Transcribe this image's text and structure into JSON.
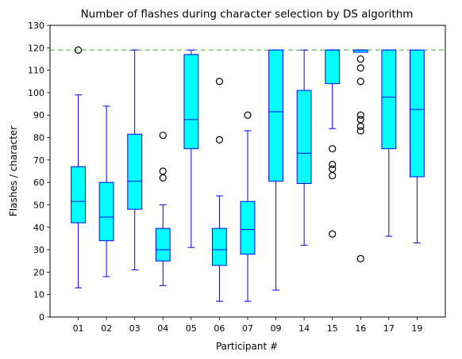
{
  "chart_data": {
    "type": "box",
    "title": "Number of flashes during character selection by DS algorithm",
    "xlabel": "Participant #",
    "ylabel": "Flashes / character",
    "ylim": [
      0,
      130
    ],
    "yticks": [
      0,
      10,
      20,
      30,
      40,
      50,
      60,
      70,
      80,
      90,
      100,
      110,
      120,
      130
    ],
    "reference_line": {
      "y": 119,
      "style": "dashed",
      "color": "#7fbf7f"
    },
    "colors": {
      "box_fill": "#00ffff",
      "box_edge": "#0000ff",
      "whisker": "#0000ff",
      "median": "#0000ff",
      "flier_edge": "#000000"
    },
    "categories": [
      "01",
      "02",
      "03",
      "04",
      "05",
      "06",
      "07",
      "09",
      "14",
      "15",
      "16",
      "17",
      "19"
    ],
    "boxes": [
      {
        "label": "01",
        "whisker_low": 13,
        "q1": 42,
        "median": 51.5,
        "q3": 67,
        "whisker_high": 99,
        "fliers": [
          119
        ]
      },
      {
        "label": "02",
        "whisker_low": 18,
        "q1": 34,
        "median": 44.5,
        "q3": 60,
        "whisker_high": 94,
        "fliers": []
      },
      {
        "label": "03",
        "whisker_low": 21,
        "q1": 48,
        "median": 60.5,
        "q3": 81.5,
        "whisker_high": 119,
        "fliers": []
      },
      {
        "label": "04",
        "whisker_low": 14,
        "q1": 25,
        "median": 30,
        "q3": 39.5,
        "whisker_high": 50,
        "fliers": [
          62,
          65,
          81
        ]
      },
      {
        "label": "05",
        "whisker_low": 31,
        "q1": 75,
        "median": 88,
        "q3": 117,
        "whisker_high": 119,
        "fliers": []
      },
      {
        "label": "06",
        "whisker_low": 7,
        "q1": 23,
        "median": 30,
        "q3": 39.5,
        "whisker_high": 54,
        "fliers": [
          79,
          105
        ]
      },
      {
        "label": "07",
        "whisker_low": 7,
        "q1": 28,
        "median": 39,
        "q3": 51.5,
        "whisker_high": 83,
        "fliers": [
          90
        ]
      },
      {
        "label": "09",
        "whisker_low": 12,
        "q1": 60.5,
        "median": 91.5,
        "q3": 119,
        "whisker_high": 119,
        "fliers": []
      },
      {
        "label": "14",
        "whisker_low": 32,
        "q1": 59.5,
        "median": 73,
        "q3": 101,
        "whisker_high": 119,
        "fliers": []
      },
      {
        "label": "15",
        "whisker_low": 84,
        "q1": 104,
        "median": 119,
        "q3": 119,
        "whisker_high": 119,
        "fliers": [
          37,
          63,
          66,
          68,
          75
        ]
      },
      {
        "label": "16",
        "whisker_low": 118,
        "q1": 118,
        "median": 119,
        "q3": 119,
        "whisker_high": 119,
        "fliers": [
          26,
          83,
          85,
          88,
          90,
          105,
          111,
          115
        ]
      },
      {
        "label": "17",
        "whisker_low": 36,
        "q1": 75,
        "median": 98,
        "q3": 119,
        "whisker_high": 119,
        "fliers": []
      },
      {
        "label": "19",
        "whisker_low": 33,
        "q1": 62.5,
        "median": 92.5,
        "q3": 119,
        "whisker_high": 119,
        "fliers": []
      }
    ]
  }
}
